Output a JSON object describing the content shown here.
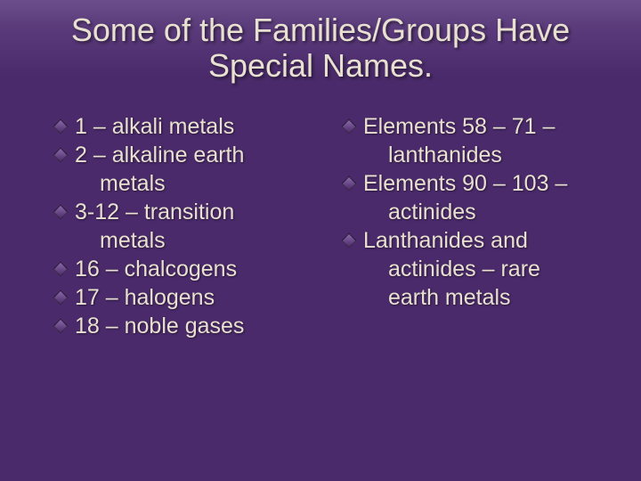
{
  "slide": {
    "title": "Some of the Families/Groups Have Special Names.",
    "background_gradient": [
      "#6a4e8a",
      "#4a2a6a"
    ],
    "text_color": "#e8e0d0",
    "title_fontsize": 36,
    "body_fontsize": 25,
    "bullet_shape": "diamond",
    "bullet_fill": "#8a6aa8",
    "bullet_border": "#2a1a3a"
  },
  "left": {
    "items": [
      {
        "line1": "1 – alkali metals"
      },
      {
        "line1": "2 – alkaline earth",
        "line2": "metals"
      },
      {
        "line1": "3-12 – transition",
        "line2": "metals"
      },
      {
        "line1": "16 – chalcogens"
      },
      {
        "line1": "17 – halogens"
      },
      {
        "line1": "18 – noble gases"
      }
    ]
  },
  "right": {
    "items": [
      {
        "line1": "Elements 58 – 71 –",
        "line2": "lanthanides"
      },
      {
        "line1": "Elements 90 – 103 –",
        "line2": "actinides"
      },
      {
        "line1": "Lanthanides and",
        "line2": "actinides – rare",
        "line3": "earth metals"
      }
    ]
  }
}
